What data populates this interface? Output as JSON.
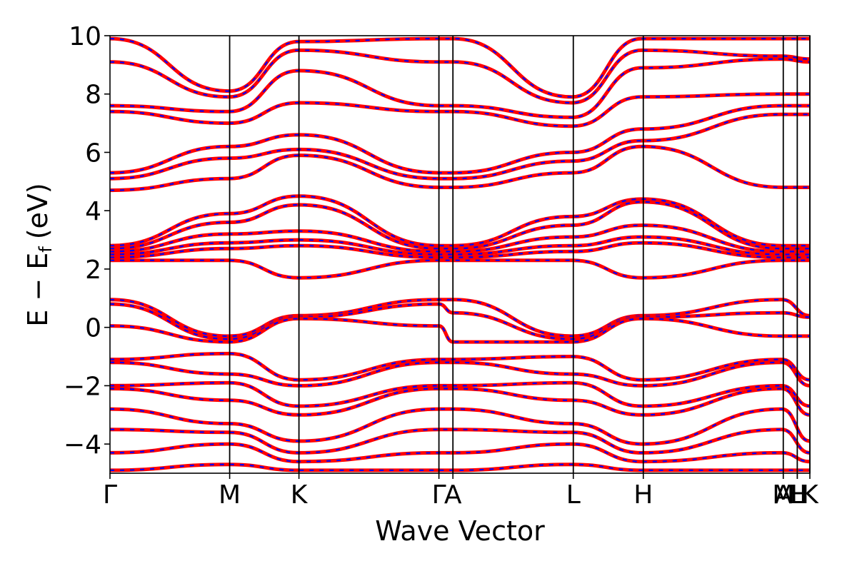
{
  "chart_data": {
    "type": "line",
    "title": "",
    "xlabel": "Wave Vector",
    "ylabel": {
      "main": "E − E",
      "sub": "f",
      "unit": "(eV)"
    },
    "ylim": [
      -5,
      10
    ],
    "yticks": [
      {
        "value": 10,
        "label": "10"
      },
      {
        "value": 8,
        "label": "8"
      },
      {
        "value": 6,
        "label": "6"
      },
      {
        "value": 4,
        "label": "4"
      },
      {
        "value": 2,
        "label": "2"
      },
      {
        "value": 0,
        "label": "0"
      },
      {
        "value": -2,
        "label": "−2"
      },
      {
        "value": -4,
        "label": "−4"
      }
    ],
    "xlim": [
      0,
      1
    ],
    "kpoints": [
      {
        "x": 0.0,
        "label": "Γ"
      },
      {
        "x": 0.171,
        "label": "M"
      },
      {
        "x": 0.27,
        "label": "K"
      },
      {
        "x": 0.47,
        "label": "Γ"
      },
      {
        "x": 0.49,
        "label": "A"
      },
      {
        "x": 0.662,
        "label": "L"
      },
      {
        "x": 0.762,
        "label": "H"
      },
      {
        "x": 0.962,
        "label": "A"
      },
      {
        "x": 0.962,
        "label": "M"
      },
      {
        "x": 0.982,
        "label": "L"
      },
      {
        "x": 0.982,
        "label": "H"
      },
      {
        "x": 1.0,
        "label": "K"
      }
    ],
    "kpoint_lines": [
      0.171,
      0.27,
      0.47,
      0.49,
      0.662,
      0.762,
      0.962,
      0.982,
      1.0
    ],
    "grid": false,
    "legend": "none",
    "series": [
      {
        "style": "solid",
        "color": "#ff0000",
        "bands": [
          {
            "x": [
              0,
              0.17,
              0.27,
              0.47,
              0.49,
              0.66,
              0.76,
              0.96,
              1
            ],
            "y": [
              9.9,
              8.1,
              9.8,
              9.9,
              9.9,
              7.9,
              9.9,
              9.9,
              9.9
            ]
          },
          {
            "x": [
              0,
              0.17,
              0.27,
              0.47,
              0.49,
              0.66,
              0.76,
              0.96,
              1
            ],
            "y": [
              9.1,
              7.9,
              9.5,
              9.1,
              9.1,
              7.7,
              9.5,
              9.3,
              9.2
            ]
          },
          {
            "x": [
              0,
              0.17,
              0.27,
              0.47,
              0.49,
              0.66,
              0.76,
              0.96,
              1
            ],
            "y": [
              7.6,
              7.4,
              8.8,
              7.6,
              7.6,
              7.2,
              8.9,
              9.2,
              9.1
            ]
          },
          {
            "x": [
              0,
              0.17,
              0.27,
              0.47,
              0.49,
              0.66,
              0.76,
              0.96,
              1
            ],
            "y": [
              7.4,
              7.0,
              7.7,
              7.4,
              7.4,
              6.9,
              7.9,
              8.0,
              8.0
            ]
          },
          {
            "x": [
              0,
              0.17,
              0.27,
              0.47,
              0.49,
              0.66,
              0.76,
              0.96,
              1
            ],
            "y": [
              5.3,
              6.2,
              6.6,
              5.3,
              5.3,
              6.0,
              6.8,
              7.6,
              7.6
            ]
          },
          {
            "x": [
              0,
              0.17,
              0.27,
              0.47,
              0.49,
              0.66,
              0.76,
              0.96,
              1
            ],
            "y": [
              5.1,
              5.8,
              6.1,
              5.1,
              5.1,
              5.7,
              6.4,
              7.3,
              7.3
            ]
          },
          {
            "x": [
              0,
              0.17,
              0.27,
              0.47,
              0.49,
              0.66,
              0.76,
              0.96,
              1
            ],
            "y": [
              4.7,
              5.1,
              5.9,
              4.8,
              4.8,
              5.3,
              6.2,
              4.8,
              4.8
            ]
          },
          {
            "x": [
              0,
              0.17,
              0.27,
              0.47,
              0.49,
              0.66,
              0.76,
              0.96,
              1
            ],
            "y": [
              2.8,
              3.9,
              4.5,
              2.8,
              2.8,
              3.8,
              4.4,
              2.8,
              2.8
            ]
          },
          {
            "x": [
              0,
              0.17,
              0.27,
              0.47,
              0.49,
              0.66,
              0.76,
              0.96,
              1
            ],
            "y": [
              2.7,
              3.6,
              4.2,
              2.7,
              2.7,
              3.5,
              4.3,
              2.7,
              2.7
            ]
          },
          {
            "x": [
              0,
              0.17,
              0.27,
              0.47,
              0.49,
              0.66,
              0.76,
              0.96,
              1
            ],
            "y": [
              2.6,
              3.2,
              3.3,
              2.6,
              2.6,
              3.1,
              3.5,
              2.6,
              2.6
            ]
          },
          {
            "x": [
              0,
              0.17,
              0.27,
              0.47,
              0.49,
              0.66,
              0.76,
              0.96,
              1
            ],
            "y": [
              2.5,
              2.9,
              3.0,
              2.5,
              2.5,
              2.8,
              3.1,
              2.5,
              2.5
            ]
          },
          {
            "x": [
              0,
              0.17,
              0.27,
              0.47,
              0.49,
              0.66,
              0.76,
              0.96,
              1
            ],
            "y": [
              2.4,
              2.7,
              2.8,
              2.4,
              2.4,
              2.6,
              2.9,
              2.4,
              2.4
            ]
          },
          {
            "x": [
              0,
              0.17,
              0.27,
              0.47,
              0.49,
              0.66,
              0.76,
              0.96,
              1
            ],
            "y": [
              2.3,
              2.3,
              1.7,
              2.3,
              2.3,
              2.3,
              1.7,
              2.3,
              2.3
            ]
          },
          {
            "x": [
              0,
              0.17,
              0.27,
              0.47,
              0.49,
              0.66,
              0.76,
              0.96,
              1
            ],
            "y": [
              0.95,
              -0.3,
              0.4,
              0.95,
              0.95,
              -0.3,
              0.4,
              0.95,
              0.4
            ]
          },
          {
            "x": [
              0,
              0.17,
              0.27,
              0.47,
              0.49,
              0.66,
              0.76,
              0.96,
              1
            ],
            "y": [
              0.8,
              -0.4,
              0.35,
              0.8,
              0.5,
              -0.4,
              0.35,
              0.5,
              0.35
            ]
          },
          {
            "x": [
              0,
              0.17,
              0.27,
              0.47,
              0.49,
              0.66,
              0.76,
              0.96,
              1
            ],
            "y": [
              0.05,
              -0.5,
              0.3,
              0.05,
              -0.5,
              -0.5,
              0.3,
              -0.3,
              -0.3
            ]
          },
          {
            "x": [
              0,
              0.17,
              0.27,
              0.47,
              0.49,
              0.66,
              0.76,
              0.96,
              1
            ],
            "y": [
              -1.1,
              -0.9,
              -1.8,
              -1.1,
              -1.1,
              -1.0,
              -1.8,
              -1.1,
              -1.8
            ]
          },
          {
            "x": [
              0,
              0.17,
              0.27,
              0.47,
              0.49,
              0.66,
              0.76,
              0.96,
              1
            ],
            "y": [
              -1.2,
              -1.6,
              -2.0,
              -1.2,
              -1.2,
              -1.6,
              -2.0,
              -1.2,
              -2.0
            ]
          },
          {
            "x": [
              0,
              0.17,
              0.27,
              0.47,
              0.49,
              0.66,
              0.76,
              0.96,
              1
            ],
            "y": [
              -2.0,
              -1.9,
              -2.7,
              -2.0,
              -2.0,
              -1.9,
              -2.7,
              -2.0,
              -2.7
            ]
          },
          {
            "x": [
              0,
              0.17,
              0.27,
              0.47,
              0.49,
              0.66,
              0.76,
              0.96,
              1
            ],
            "y": [
              -2.1,
              -2.5,
              -3.0,
              -2.1,
              -2.1,
              -2.5,
              -3.0,
              -2.1,
              -3.0
            ]
          },
          {
            "x": [
              0,
              0.17,
              0.27,
              0.47,
              0.49,
              0.66,
              0.76,
              0.96,
              1
            ],
            "y": [
              -2.8,
              -3.3,
              -3.9,
              -2.8,
              -2.8,
              -3.3,
              -4.0,
              -2.8,
              -3.9
            ]
          },
          {
            "x": [
              0,
              0.17,
              0.27,
              0.47,
              0.49,
              0.66,
              0.76,
              0.96,
              1
            ],
            "y": [
              -3.5,
              -3.6,
              -4.3,
              -3.5,
              -3.5,
              -3.6,
              -4.3,
              -3.5,
              -4.3
            ]
          },
          {
            "x": [
              0,
              0.17,
              0.27,
              0.47,
              0.49,
              0.66,
              0.76,
              0.96,
              1
            ],
            "y": [
              -4.3,
              -4.0,
              -4.6,
              -4.3,
              -4.3,
              -4.0,
              -4.6,
              -4.3,
              -4.6
            ]
          },
          {
            "x": [
              0,
              0.17,
              0.27,
              0.47,
              0.49,
              0.66,
              0.76,
              0.96,
              1
            ],
            "y": [
              -4.9,
              -4.7,
              -4.9,
              -4.9,
              -4.9,
              -4.7,
              -4.9,
              -4.9,
              -4.9
            ]
          }
        ]
      },
      {
        "style": "dashed",
        "color": "#0000ff",
        "bands": "same as solid series"
      }
    ]
  }
}
